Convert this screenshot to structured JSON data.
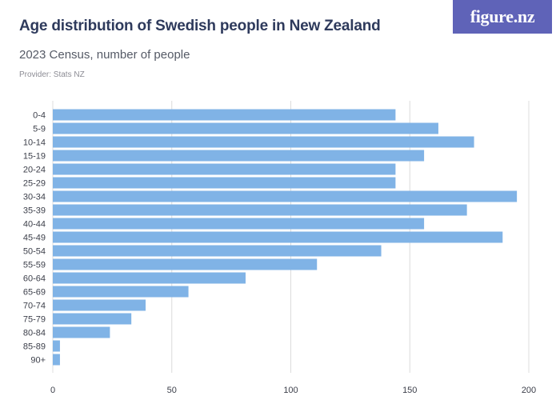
{
  "header": {
    "title": "Age distribution of Swedish people in New Zealand",
    "subtitle": "2023 Census, number of people",
    "provider": "Provider: Stats NZ",
    "logo_text": "figure.nz"
  },
  "colors": {
    "bar": "#80b3e6",
    "grid": "#dcdcdc",
    "logo_bg": "#5f63b8",
    "title": "#2e3a5c"
  },
  "chart_data": {
    "type": "bar",
    "orientation": "horizontal",
    "title": "Age distribution of Swedish people in New Zealand",
    "subtitle": "2023 Census, number of people",
    "xlabel": "",
    "ylabel": "",
    "categories": [
      "0-4",
      "5-9",
      "10-14",
      "15-19",
      "20-24",
      "25-29",
      "30-34",
      "35-39",
      "40-44",
      "45-49",
      "50-54",
      "55-59",
      "60-64",
      "65-69",
      "70-74",
      "75-79",
      "80-84",
      "85-89",
      "90+"
    ],
    "values": [
      144,
      162,
      177,
      156,
      144,
      144,
      195,
      174,
      156,
      189,
      138,
      111,
      81,
      57,
      39,
      33,
      24,
      3,
      3
    ],
    "xlim": [
      0,
      200
    ],
    "x_ticks": [
      "0",
      "50",
      "100",
      "150",
      "200"
    ],
    "grid": true
  }
}
